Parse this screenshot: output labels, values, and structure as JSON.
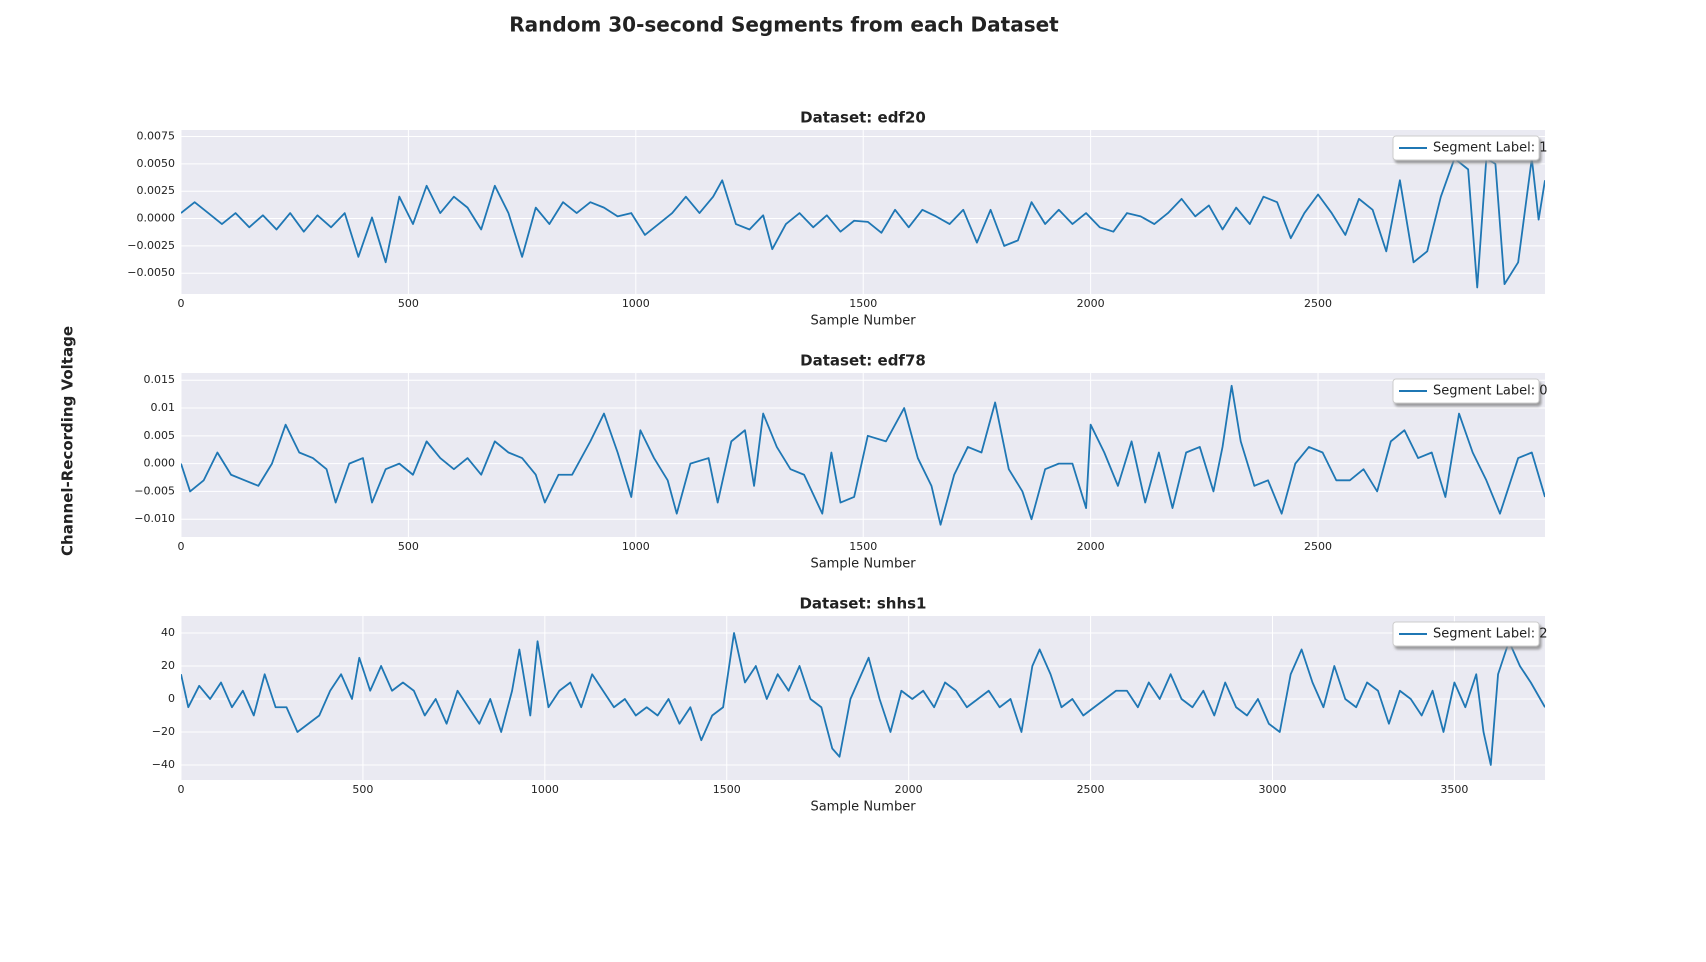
{
  "title": "Random 30-second Segments from each Dataset",
  "ylabel": "Channel-Recording Voltage",
  "chart_data": [
    {
      "type": "line",
      "title": "Dataset: edf20",
      "xlabel": "Sample Number",
      "grid": true,
      "legend": "upper right",
      "xlim": [
        0,
        2999
      ],
      "ylim": [
        -0.0069,
        0.0081
      ],
      "xticks": [
        0,
        500,
        1000,
        1500,
        2000,
        2500
      ],
      "yticks": [
        {
          "value": 0.0075,
          "label": "0.0075"
        },
        {
          "value": 0.005,
          "label": "0.0050"
        },
        {
          "value": 0.0025,
          "label": "0.0025"
        },
        {
          "value": 0,
          "label": "0.0000"
        },
        {
          "value": -0.0025,
          "label": "−0.0025"
        },
        {
          "value": -0.005,
          "label": "−0.0050"
        }
      ],
      "x": [
        0,
        30,
        60,
        90,
        120,
        150,
        180,
        210,
        240,
        270,
        300,
        330,
        360,
        390,
        420,
        450,
        480,
        510,
        540,
        570,
        600,
        630,
        660,
        690,
        720,
        750,
        780,
        810,
        840,
        870,
        900,
        930,
        960,
        990,
        1020,
        1050,
        1080,
        1110,
        1140,
        1170,
        1190,
        1220,
        1250,
        1280,
        1300,
        1330,
        1360,
        1390,
        1420,
        1450,
        1480,
        1510,
        1540,
        1570,
        1600,
        1630,
        1660,
        1690,
        1720,
        1750,
        1780,
        1810,
        1840,
        1870,
        1900,
        1930,
        1960,
        1990,
        2020,
        2050,
        2080,
        2110,
        2140,
        2170,
        2200,
        2230,
        2260,
        2290,
        2320,
        2350,
        2380,
        2410,
        2440,
        2470,
        2500,
        2530,
        2560,
        2590,
        2620,
        2650,
        2680,
        2710,
        2740,
        2770,
        2800,
        2830,
        2850,
        2870,
        2890,
        2910,
        2940,
        2970,
        2985,
        2999
      ],
      "series": [
        {
          "name": "Segment Label: 1",
          "color": "#1f77b4",
          "values": [
            0.0005,
            0.0015,
            0.0005,
            -0.0005,
            0.0005,
            -0.0008,
            0.0003,
            -0.001,
            0.0005,
            -0.0012,
            0.0003,
            -0.0008,
            0.0005,
            -0.0035,
            0.0001,
            -0.004,
            0.002,
            -0.0005,
            0.003,
            0.0005,
            0.002,
            0.001,
            -0.001,
            0.003,
            0.0005,
            -0.0035,
            0.001,
            -0.0005,
            0.0015,
            0.0005,
            0.0015,
            0.001,
            0.0002,
            0.0005,
            -0.0015,
            -0.0005,
            0.0005,
            0.002,
            0.0005,
            0.002,
            0.0035,
            -0.0005,
            -0.001,
            0.0003,
            -0.0028,
            -0.0005,
            0.0005,
            -0.0008,
            0.0003,
            -0.0012,
            -0.0002,
            -0.0003,
            -0.0013,
            0.0008,
            -0.0008,
            0.0008,
            0.0002,
            -0.0005,
            0.0008,
            -0.0022,
            0.0008,
            -0.0025,
            -0.002,
            0.0015,
            -0.0005,
            0.0008,
            -0.0005,
            0.0005,
            -0.0008,
            -0.0012,
            0.0005,
            0.0002,
            -0.0005,
            0.0005,
            0.0018,
            0.0002,
            0.0012,
            -0.001,
            0.001,
            -0.0005,
            0.002,
            0.0015,
            -0.0018,
            0.0005,
            0.0022,
            0.0005,
            -0.0015,
            0.0018,
            0.0008,
            -0.003,
            0.0035,
            -0.004,
            -0.003,
            0.002,
            0.0055,
            0.0045,
            -0.0063,
            0.0055,
            0.005,
            -0.006,
            -0.004,
            0.0055,
            -0.0001,
            0.0035
          ]
        }
      ]
    },
    {
      "type": "line",
      "title": "Dataset: edf78",
      "xlabel": "Sample Number",
      "grid": true,
      "legend": "upper right",
      "xlim": [
        0,
        2999
      ],
      "ylim": [
        -0.0132,
        0.0163
      ],
      "xticks": [
        0,
        500,
        1000,
        1500,
        2000,
        2500
      ],
      "yticks": [
        0.015,
        0.01,
        0.005,
        {
          "value": 0,
          "label": "0.000"
        },
        {
          "value": -0.005,
          "label": "−0.005"
        },
        {
          "value": -0.01,
          "label": "−0.010"
        }
      ],
      "x": [
        0,
        20,
        50,
        80,
        110,
        140,
        170,
        200,
        230,
        260,
        290,
        320,
        340,
        370,
        400,
        420,
        450,
        480,
        510,
        540,
        570,
        600,
        630,
        660,
        690,
        720,
        750,
        780,
        800,
        830,
        860,
        900,
        930,
        960,
        990,
        1010,
        1040,
        1070,
        1090,
        1120,
        1160,
        1180,
        1210,
        1240,
        1260,
        1280,
        1310,
        1340,
        1370,
        1410,
        1430,
        1450,
        1480,
        1510,
        1550,
        1590,
        1620,
        1650,
        1670,
        1700,
        1730,
        1760,
        1790,
        1820,
        1850,
        1870,
        1900,
        1930,
        1960,
        1990,
        2000,
        2030,
        2060,
        2090,
        2120,
        2150,
        2180,
        2210,
        2240,
        2270,
        2290,
        2310,
        2330,
        2360,
        2390,
        2420,
        2450,
        2480,
        2510,
        2540,
        2570,
        2600,
        2630,
        2660,
        2690,
        2720,
        2750,
        2780,
        2810,
        2840,
        2870,
        2900,
        2940,
        2970,
        2999
      ],
      "series": [
        {
          "name": "Segment Label: 0",
          "color": "#1f77b4",
          "values": [
            0,
            -0.005,
            -0.003,
            0.002,
            -0.002,
            -0.003,
            -0.004,
            0,
            0.007,
            0.002,
            0.001,
            -0.001,
            -0.007,
            0,
            0.001,
            -0.007,
            -0.001,
            0,
            -0.002,
            0.004,
            0.001,
            -0.001,
            0.001,
            -0.002,
            0.004,
            0.002,
            0.001,
            -0.002,
            -0.007,
            -0.002,
            -0.002,
            0.004,
            0.009,
            0.002,
            -0.006,
            0.006,
            0.001,
            -0.003,
            -0.009,
            0,
            0.001,
            -0.007,
            0.004,
            0.006,
            -0.004,
            0.009,
            0.003,
            -0.001,
            -0.002,
            -0.009,
            0.002,
            -0.007,
            -0.006,
            0.005,
            0.004,
            0.01,
            0.001,
            -0.004,
            -0.011,
            -0.002,
            0.003,
            0.002,
            0.011,
            -0.001,
            -0.005,
            -0.01,
            -0.001,
            0,
            0,
            -0.008,
            0.007,
            0.002,
            -0.004,
            0.004,
            -0.007,
            0.002,
            -0.008,
            0.002,
            0.003,
            -0.005,
            0.003,
            0.014,
            0.004,
            -0.004,
            -0.003,
            -0.009,
            0,
            0.003,
            0.002,
            -0.003,
            -0.003,
            -0.001,
            -0.005,
            0.004,
            0.006,
            0.001,
            0.002,
            -0.006,
            0.009,
            0.002,
            -0.003,
            -0.009,
            0.001,
            0.002,
            -0.006
          ]
        }
      ]
    },
    {
      "type": "line",
      "title": "Dataset: shhs1",
      "xlabel": "Sample Number",
      "grid": true,
      "legend": "upper right",
      "xlim": [
        0,
        3749
      ],
      "ylim": [
        -49.1,
        50.3
      ],
      "xticks": [
        0,
        500,
        1000,
        1500,
        2000,
        2500,
        3000,
        3500
      ],
      "yticks": [
        40,
        20,
        0,
        {
          "value": -20,
          "label": "−20"
        },
        {
          "value": -40,
          "label": "−40"
        }
      ],
      "x": [
        0,
        20,
        50,
        80,
        110,
        140,
        170,
        200,
        230,
        260,
        290,
        320,
        350,
        380,
        410,
        440,
        470,
        490,
        520,
        550,
        580,
        610,
        640,
        670,
        700,
        730,
        760,
        790,
        820,
        850,
        880,
        910,
        930,
        960,
        980,
        1010,
        1040,
        1070,
        1100,
        1130,
        1160,
        1190,
        1220,
        1250,
        1280,
        1310,
        1340,
        1370,
        1400,
        1430,
        1460,
        1490,
        1520,
        1550,
        1580,
        1610,
        1640,
        1670,
        1700,
        1730,
        1760,
        1790,
        1810,
        1840,
        1870,
        1890,
        1920,
        1950,
        1980,
        2010,
        2040,
        2070,
        2100,
        2130,
        2160,
        2190,
        2220,
        2250,
        2280,
        2310,
        2340,
        2360,
        2390,
        2420,
        2450,
        2480,
        2510,
        2540,
        2570,
        2600,
        2630,
        2660,
        2690,
        2720,
        2750,
        2780,
        2810,
        2840,
        2870,
        2900,
        2930,
        2960,
        2990,
        3020,
        3050,
        3080,
        3110,
        3140,
        3170,
        3200,
        3230,
        3260,
        3290,
        3320,
        3350,
        3380,
        3410,
        3440,
        3470,
        3500,
        3530,
        3560,
        3580,
        3600,
        3620,
        3650,
        3680,
        3710,
        3749
      ],
      "series": [
        {
          "name": "Segment Label: 2",
          "color": "#1f77b4",
          "values": [
            15,
            -5,
            8,
            0,
            10,
            -5,
            5,
            -10,
            15,
            -5,
            -5,
            -20,
            -15,
            -10,
            5,
            15,
            0,
            25,
            5,
            20,
            5,
            10,
            5,
            -10,
            0,
            -15,
            5,
            -5,
            -15,
            0,
            -20,
            5,
            30,
            -10,
            35,
            -5,
            5,
            10,
            -5,
            15,
            5,
            -5,
            0,
            -10,
            -5,
            -10,
            0,
            -15,
            -5,
            -25,
            -10,
            -5,
            40,
            10,
            20,
            0,
            15,
            5,
            20,
            0,
            -5,
            -30,
            -35,
            0,
            15,
            25,
            0,
            -20,
            5,
            0,
            5,
            -5,
            10,
            5,
            -5,
            0,
            5,
            -5,
            0,
            -20,
            20,
            30,
            15,
            -5,
            0,
            -10,
            -5,
            0,
            5,
            5,
            -5,
            10,
            0,
            15,
            0,
            -5,
            5,
            -10,
            10,
            -5,
            -10,
            0,
            -15,
            -20,
            15,
            30,
            10,
            -5,
            20,
            0,
            -5,
            10,
            5,
            -15,
            5,
            0,
            -10,
            5,
            -20,
            10,
            -5,
            15,
            -20,
            -40,
            15,
            35,
            20,
            10,
            -5
          ]
        }
      ]
    }
  ]
}
